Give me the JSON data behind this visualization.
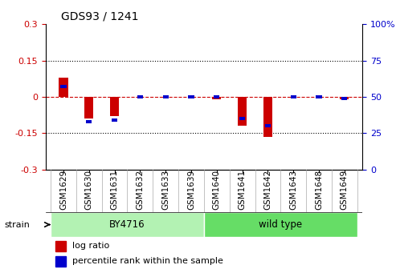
{
  "title": "GDS93 / 1241",
  "samples": [
    "GSM1629",
    "GSM1630",
    "GSM1631",
    "GSM1632",
    "GSM1633",
    "GSM1639",
    "GSM1640",
    "GSM1641",
    "GSM1642",
    "GSM1643",
    "GSM1648",
    "GSM1649"
  ],
  "log_ratio": [
    0.08,
    -0.09,
    -0.08,
    0.0,
    0.0,
    0.0,
    -0.01,
    -0.12,
    -0.165,
    0.0,
    0.0,
    -0.01
  ],
  "percentile": [
    57,
    33,
    34,
    50,
    50,
    50,
    50,
    35,
    30,
    50,
    50,
    49
  ],
  "ylim": [
    -0.3,
    0.3
  ],
  "yticks_left": [
    -0.3,
    -0.15,
    0,
    0.15,
    0.3
  ],
  "yticks_right": [
    0,
    25,
    50,
    75,
    100
  ],
  "right_axis_color": "#0000CC",
  "left_axis_color": "#CC0000",
  "bar_width": 0.35,
  "red_bar_color": "#CC0000",
  "blue_bar_color": "#0000CC",
  "zero_line_color": "#CC0000",
  "dotted_line_color": "#000000",
  "background_color": "#ffffff",
  "strain_label": "strain",
  "legend_log_ratio": "log ratio",
  "legend_percentile": "percentile rank within the sample",
  "group1_label": "BY4716",
  "group1_color": "#b3f2b3",
  "group2_label": "wild type",
  "group2_color": "#66dd66"
}
